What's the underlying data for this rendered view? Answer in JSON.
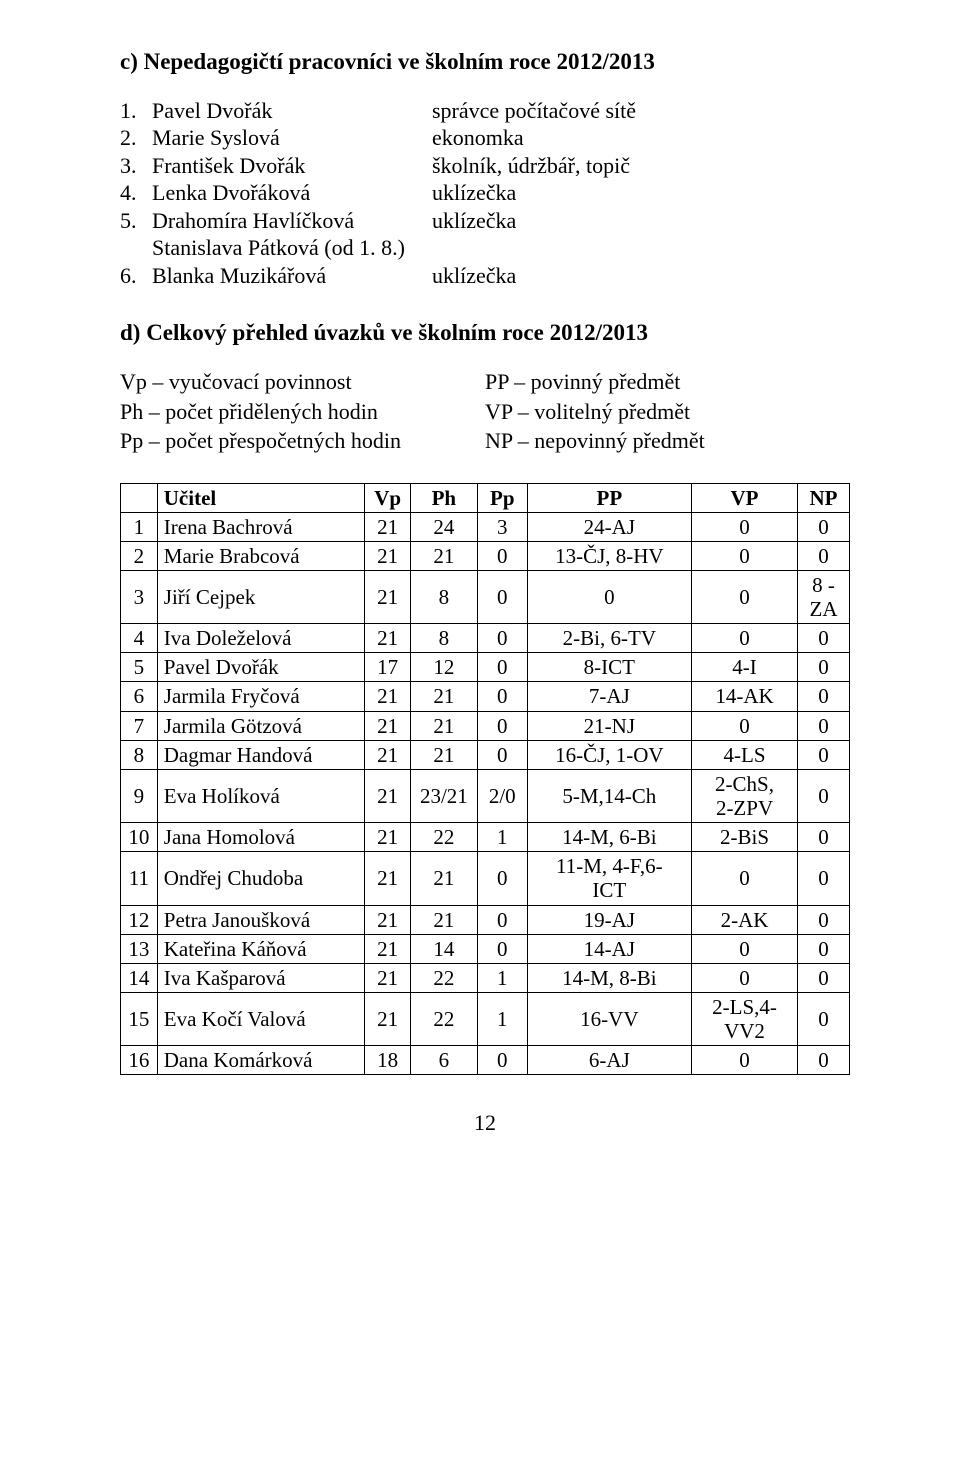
{
  "sectionC": {
    "heading": "c) Nepedagogičtí pracovníci ve školním roce 2012/2013",
    "staff": [
      {
        "num": "1.",
        "name": "Pavel Dvořák",
        "role": "správce počítačové sítě"
      },
      {
        "num": "2.",
        "name": "Marie Syslová",
        "role": "ekonomka"
      },
      {
        "num": "3.",
        "name": "František Dvořák",
        "role": "školník, údržbář, topič"
      },
      {
        "num": "4.",
        "name": "Lenka Dvořáková",
        "role": "uklízečka"
      },
      {
        "num": "5.",
        "name": "Drahomíra Havlíčková",
        "role": "uklízečka"
      },
      {
        "num": "",
        "name": "Stanislava Pátková (od 1. 8.)",
        "role": ""
      },
      {
        "num": "6.",
        "name": "Blanka Muzikářová",
        "role": "uklízečka"
      }
    ]
  },
  "sectionD": {
    "heading": "d) Celkový přehled úvazků ve školním roce 2012/2013",
    "defsLeft": [
      "Vp – vyučovací povinnost",
      "Ph – počet přidělených hodin",
      "Pp – počet přespočetných hodin"
    ],
    "defsRight": [
      "PP – povinný předmět",
      "VP – volitelný předmět",
      "NP – nepovinný předmět"
    ],
    "table": {
      "headers": {
        "idx": "",
        "name": "Učitel",
        "Vp": "Vp",
        "Ph": "Ph",
        "Pp": "Pp",
        "PP": "PP",
        "VPcol": "VP",
        "NP": "NP"
      },
      "rows": [
        {
          "idx": "1",
          "name": "Irena Bachrová",
          "Vp": "21",
          "Ph": "24",
          "Pp": "3",
          "PP": "24-AJ",
          "VP": "0",
          "NP": "0"
        },
        {
          "idx": "2",
          "name": "Marie Brabcová",
          "Vp": "21",
          "Ph": "21",
          "Pp": "0",
          "PP": "13-ČJ, 8-HV",
          "VP": "0",
          "NP": "0"
        },
        {
          "idx": "3",
          "name": "Jiří Cejpek",
          "Vp": "21",
          "Ph": "8",
          "Pp": "0",
          "PP": "0",
          "VP": "0",
          "NP": "8 -\nZA"
        },
        {
          "idx": "4",
          "name": "Iva Doleželová",
          "Vp": "21",
          "Ph": "8",
          "Pp": "0",
          "PP": "2-Bi, 6-TV",
          "VP": "0",
          "NP": "0"
        },
        {
          "idx": "5",
          "name": "Pavel Dvořák",
          "Vp": "17",
          "Ph": "12",
          "Pp": "0",
          "PP": "8-ICT",
          "VP": "4-I",
          "NP": "0"
        },
        {
          "idx": "6",
          "name": "Jarmila Fryčová",
          "Vp": "21",
          "Ph": "21",
          "Pp": "0",
          "PP": "7-AJ",
          "VP": "14-AK",
          "NP": "0"
        },
        {
          "idx": "7",
          "name": "Jarmila Götzová",
          "Vp": "21",
          "Ph": "21",
          "Pp": "0",
          "PP": "21-NJ",
          "VP": "0",
          "NP": "0"
        },
        {
          "idx": "8",
          "name": "Dagmar Handová",
          "Vp": "21",
          "Ph": "21",
          "Pp": "0",
          "PP": "16-ČJ, 1-OV",
          "VP": "4-LS",
          "NP": "0"
        },
        {
          "idx": "9",
          "name": "Eva Holíková",
          "Vp": "21",
          "Ph": "23/21",
          "Pp": "2/0",
          "PP": "5-M,14-Ch",
          "VP": "2-ChS,\n2-ZPV",
          "NP": "0"
        },
        {
          "idx": "10",
          "name": "Jana Homolová",
          "Vp": "21",
          "Ph": "22",
          "Pp": "1",
          "PP": "14-M, 6-Bi",
          "VP": "2-BiS",
          "NP": "0"
        },
        {
          "idx": "11",
          "name": "Ondřej Chudoba",
          "Vp": "21",
          "Ph": "21",
          "Pp": "0",
          "PP": "11-M, 4-F,6-\nICT",
          "VP": "0",
          "NP": "0"
        },
        {
          "idx": "12",
          "name": "Petra Janoušková",
          "Vp": "21",
          "Ph": "21",
          "Pp": "0",
          "PP": "19-AJ",
          "VP": "2-AK",
          "NP": "0"
        },
        {
          "idx": "13",
          "name": "Kateřina Káňová",
          "Vp": "21",
          "Ph": "14",
          "Pp": "0",
          "PP": "14-AJ",
          "VP": "0",
          "NP": "0"
        },
        {
          "idx": "14",
          "name": "Iva Kašparová",
          "Vp": "21",
          "Ph": "22",
          "Pp": "1",
          "PP": "14-M, 8-Bi",
          "VP": "0",
          "NP": "0"
        },
        {
          "idx": "15",
          "name": "Eva Kočí Valová",
          "Vp": "21",
          "Ph": "22",
          "Pp": "1",
          "PP": "16-VV",
          "VP": "2-LS,4-\nVV2",
          "NP": "0"
        },
        {
          "idx": "16",
          "name": "Dana Komárková",
          "Vp": "18",
          "Ph": "6",
          "Pp": "0",
          "PP": "6-AJ",
          "VP": "0",
          "NP": "0"
        }
      ]
    }
  },
  "pageNumber": "12"
}
